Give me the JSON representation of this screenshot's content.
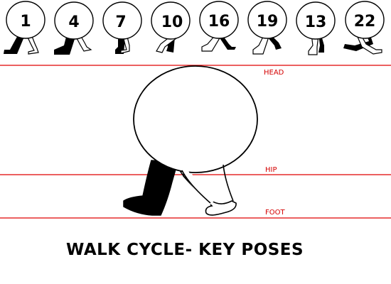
{
  "title": "WALK CYCLE- KEY POSES",
  "guides": {
    "head_label": "HEAD",
    "hip_label": "HIP",
    "foot_label": "FOOT",
    "line_color": "#e00000"
  },
  "poses": [
    {
      "number": "1"
    },
    {
      "number": "4"
    },
    {
      "number": "7"
    },
    {
      "number": "10"
    },
    {
      "number": "16"
    },
    {
      "number": "19"
    },
    {
      "number": "13"
    },
    {
      "number": "22"
    }
  ]
}
